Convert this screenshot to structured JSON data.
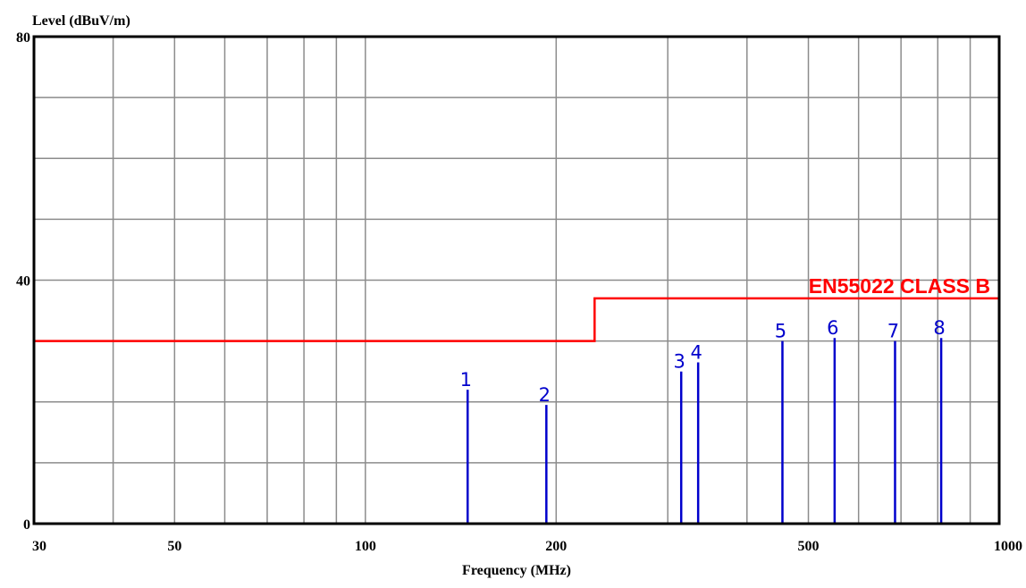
{
  "chart_data": {
    "type": "line",
    "title": "",
    "ylabel": "Level (dBuV/m)",
    "xlabel": "Frequency (MHz)",
    "x_scale": "log",
    "xlim": [
      30,
      1000
    ],
    "ylim": [
      0,
      80
    ],
    "grid": true,
    "x_tick_labels": [
      "30",
      "50",
      "100",
      "200",
      "500",
      "1000"
    ],
    "x_tick_values": [
      30,
      50,
      100,
      200,
      500,
      1000
    ],
    "y_tick_labels": [
      "0",
      "40",
      "80"
    ],
    "y_tick_values": [
      0,
      40,
      80
    ],
    "x_grid_values": [
      40,
      50,
      60,
      70,
      80,
      90,
      100,
      200,
      300,
      400,
      500,
      600,
      700,
      800,
      900
    ],
    "y_grid_values": [
      10,
      20,
      30,
      40,
      50,
      60,
      70
    ],
    "limit_line": {
      "name": "EN55022 CLASS B",
      "color": "#ff0000",
      "points": [
        [
          30,
          30
        ],
        [
          230,
          30
        ],
        [
          230,
          37
        ],
        [
          1000,
          37
        ]
      ]
    },
    "markers": {
      "color": "#0000cc",
      "points": [
        {
          "label": "1",
          "x": 145,
          "y": 22
        },
        {
          "label": "2",
          "x": 193,
          "y": 19.5
        },
        {
          "label": "3",
          "x": 315,
          "y": 25
        },
        {
          "label": "4",
          "x": 335,
          "y": 26.5
        },
        {
          "label": "5",
          "x": 455,
          "y": 30
        },
        {
          "label": "6",
          "x": 550,
          "y": 30.5
        },
        {
          "label": "7",
          "x": 685,
          "y": 30
        },
        {
          "label": "8",
          "x": 810,
          "y": 30.5
        }
      ]
    }
  }
}
